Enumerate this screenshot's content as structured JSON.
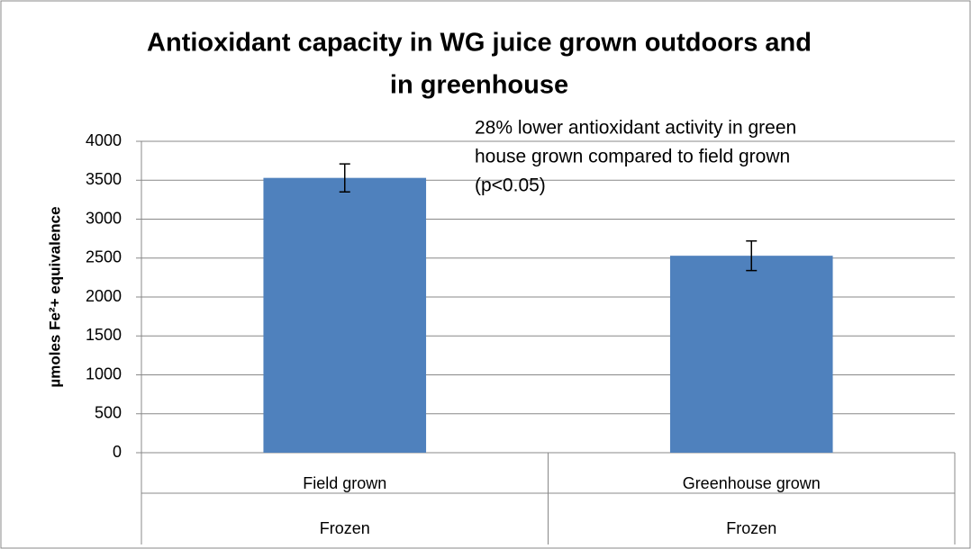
{
  "chart_data": {
    "type": "bar",
    "title": [
      "Antioxidant capacity in WG juice grown outdoors and",
      "in greenhouse"
    ],
    "y_label": "µmoles Fe²+ equivalence",
    "annotation": [
      "28% lower antioxidant activity in green",
      "house grown compared to field grown",
      "(p<0.05)"
    ],
    "categories": [
      "Field grown",
      "Greenhouse grown"
    ],
    "category_groups": [
      "Frozen",
      "Frozen"
    ],
    "values": [
      3530,
      2530
    ],
    "errors": [
      180,
      190
    ],
    "color": "#4f81bd",
    "ylim": [
      0,
      4000
    ],
    "yticks": [
      0,
      500,
      1000,
      1500,
      2000,
      2500,
      3000,
      3500,
      4000
    ],
    "grid": true
  }
}
